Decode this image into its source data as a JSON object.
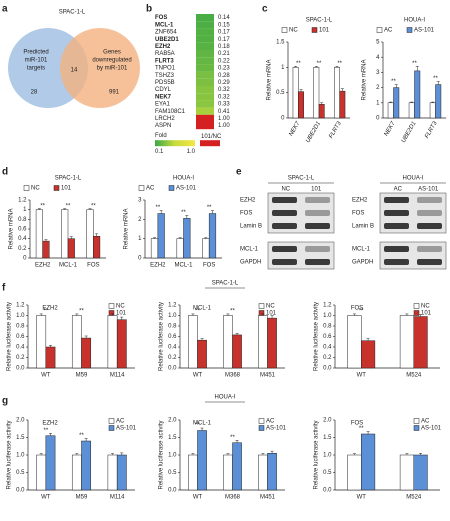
{
  "panel_letters": [
    "a",
    "b",
    "c",
    "d",
    "e",
    "f",
    "g"
  ],
  "venn": {
    "title": "SPAC-1-L",
    "left_label": [
      "Predicted",
      "miR-101",
      "targets"
    ],
    "right_label": [
      "Genes",
      "downregulated",
      "by miR-101"
    ],
    "left_only": 28,
    "overlap": 14,
    "right_only": 991,
    "left_color": "#a9c4e6",
    "right_color": "#f4b27f"
  },
  "heatmap": {
    "genes": [
      "FOS",
      "MCL-1",
      "ZNF654",
      "UBE2D1",
      "EZH2",
      "RAB5A",
      "FLRT3",
      "TNPO1",
      "TSHZ3",
      "PDS5B",
      "CDYL",
      "NEK7",
      "EYA1",
      "FAM108C1",
      "LRCH2",
      "ASPN"
    ],
    "values": [
      0.14,
      0.15,
      0.17,
      0.17,
      0.18,
      0.21,
      0.22,
      0.23,
      0.28,
      0.29,
      0.32,
      0.32,
      0.33,
      0.41,
      1.0,
      1.0
    ],
    "value_labels": [
      "0.14",
      "0.15",
      "0.17",
      "0.17",
      "0.18",
      "0.21",
      "0.22",
      "0.23",
      "0.28",
      "0.29",
      "0.32",
      "0.32",
      "0.33",
      "0.41",
      "1.00",
      "1.00"
    ],
    "emphasis": [
      true,
      true,
      false,
      true,
      true,
      false,
      true,
      false,
      false,
      false,
      false,
      true,
      false,
      false,
      false,
      false
    ],
    "legend_title": "Fold",
    "scale_min": 0.1,
    "scale_max": {
      "value": 1,
      "label": "1.0"
    },
    "ratio_label": "101/NC"
  },
  "blot": {
    "groups": [
      {
        "title": "SPAC-1-L",
        "lanes": [
          "NC",
          "101"
        ]
      },
      {
        "title": "HOUA-I",
        "lanes": [
          "AC",
          "AS-101"
        ]
      }
    ],
    "rows": [
      "EZH2",
      "FOS",
      "Lamin B",
      "MCL-1",
      "GAPDH"
    ]
  },
  "group_titles": {
    "f": "SPAC-1-L",
    "g": "HOUA-I"
  },
  "chart_data": [
    {
      "type": "bar",
      "title": "SPAC-1-L",
      "y_label": "Relative mRNA",
      "categories": [
        "NEK7",
        "UBE2D1",
        "FLRT3"
      ],
      "series": [
        {
          "name": "NC",
          "color": "#ffffff",
          "values": [
            1,
            1,
            1
          ],
          "errors": [
            0.02,
            0.02,
            0.02
          ]
        },
        {
          "name": "101",
          "color": "#c8322d",
          "values": [
            0.52,
            0.27,
            0.53
          ],
          "errors": [
            0.04,
            0.03,
            0.05
          ]
        }
      ],
      "significance": [
        "**",
        "**",
        "**"
      ],
      "ylim": [
        0,
        1.5
      ],
      "yticks": [
        0,
        0.5,
        1,
        1.5
      ],
      "legend": "top"
    },
    {
      "type": "bar",
      "title": "HOUA-I",
      "y_label": "Relative mRNA",
      "categories": [
        "NEK7",
        "UBE2D1",
        "FLRT3"
      ],
      "series": [
        {
          "name": "AC",
          "color": "#ffffff",
          "values": [
            1,
            1,
            1
          ],
          "errors": [
            0.05,
            0.05,
            0.05
          ]
        },
        {
          "name": "AS-101",
          "color": "#5b8fd6",
          "values": [
            2.0,
            3.1,
            2.2
          ],
          "errors": [
            0.2,
            0.3,
            0.2
          ]
        }
      ],
      "significance": [
        "**",
        "**",
        "**"
      ],
      "ylim": [
        0,
        5
      ],
      "yticks": [
        0,
        1,
        2,
        3,
        4,
        5
      ],
      "legend": "top"
    },
    {
      "type": "bar",
      "title": "SPAC-1-L",
      "y_label": "Relative mRNA",
      "categories": [
        "EZH2",
        "MCL-1",
        "FOS"
      ],
      "series": [
        {
          "name": "NC",
          "color": "#ffffff",
          "values": [
            1,
            1,
            1
          ],
          "errors": [
            0.02,
            0.02,
            0.02
          ]
        },
        {
          "name": "101",
          "color": "#c8322d",
          "values": [
            0.35,
            0.4,
            0.45
          ],
          "errors": [
            0.03,
            0.04,
            0.05
          ]
        }
      ],
      "significance": [
        "**",
        "**",
        "**"
      ],
      "ylim": [
        0,
        1.2
      ],
      "yticks": [
        0,
        0.2,
        0.4,
        0.6,
        0.8,
        1,
        1.2
      ],
      "legend": "top"
    },
    {
      "type": "bar",
      "title": "HOUA-I",
      "y_label": "Relative mRNA",
      "categories": [
        "EZH2",
        "MCL-1",
        "FOS"
      ],
      "series": [
        {
          "name": "AC",
          "color": "#ffffff",
          "values": [
            1,
            1,
            1
          ],
          "errors": [
            0.05,
            0.05,
            0.05
          ]
        },
        {
          "name": "AS-101",
          "color": "#5b8fd6",
          "values": [
            2.3,
            2.05,
            2.3
          ],
          "errors": [
            0.15,
            0.15,
            0.15
          ]
        }
      ],
      "significance": [
        "**",
        "**",
        "**"
      ],
      "ylim": [
        0,
        3
      ],
      "yticks": [
        0,
        1,
        2,
        3
      ],
      "legend": "top"
    },
    {
      "type": "bar",
      "title": "EZH2",
      "y_label": "Relative luciferase activity",
      "categories": [
        "WT",
        "M59",
        "M114"
      ],
      "series": [
        {
          "name": "NC",
          "color": "#ffffff",
          "values": [
            1,
            1,
            1
          ],
          "errors": [
            0.03,
            0.03,
            0.03
          ]
        },
        {
          "name": "101",
          "color": "#c8322d",
          "values": [
            0.4,
            0.57,
            0.92
          ],
          "errors": [
            0.03,
            0.04,
            0.05
          ]
        }
      ],
      "significance": [
        "**",
        "**",
        null
      ],
      "ylim": [
        0,
        1.2
      ],
      "yticks": [
        {
          "value": 0,
          "label": "0.0"
        },
        0.2,
        0.4,
        0.6,
        0.8,
        {
          "value": 1,
          "label": "1.0"
        },
        1.2
      ],
      "legend": "top-right"
    },
    {
      "type": "bar",
      "title": "MCL-1",
      "y_label": "Relative luciferase activity",
      "categories": [
        "WT",
        "M368",
        "M451"
      ],
      "series": [
        {
          "name": "NC",
          "color": "#ffffff",
          "values": [
            1,
            1,
            1
          ],
          "errors": [
            0.03,
            0.03,
            0.03
          ]
        },
        {
          "name": "101",
          "color": "#c8322d",
          "values": [
            0.53,
            0.63,
            0.95
          ],
          "errors": [
            0.03,
            0.03,
            0.05
          ]
        }
      ],
      "significance": [
        "**",
        "**",
        null
      ],
      "ylim": [
        0,
        1.2
      ],
      "yticks": [
        {
          "value": 0,
          "label": "0.0"
        },
        0.2,
        0.4,
        0.6,
        0.8,
        {
          "value": 1,
          "label": "1.0"
        },
        1.2
      ],
      "legend": "top-right"
    },
    {
      "type": "bar",
      "title": "FOS",
      "y_label": "Relative luciferase activity",
      "categories": [
        "WT",
        "M524"
      ],
      "series": [
        {
          "name": "NC",
          "color": "#ffffff",
          "values": [
            1,
            1
          ],
          "errors": [
            0.03,
            0.03
          ]
        },
        {
          "name": "101",
          "color": "#c8322d",
          "values": [
            0.52,
            0.98
          ],
          "errors": [
            0.04,
            0.04
          ]
        }
      ],
      "significance": [
        "**",
        null
      ],
      "ylim": [
        0,
        1.2
      ],
      "yticks": [
        {
          "value": 0,
          "label": "0.0"
        },
        0.2,
        0.4,
        0.6,
        0.8,
        {
          "value": 1,
          "label": "1.0"
        },
        1.2
      ],
      "legend": "top-right"
    },
    {
      "type": "bar",
      "title": "EZH2",
      "y_label": "Relative luciferase activity",
      "categories": [
        "WT",
        "M59",
        "M114"
      ],
      "series": [
        {
          "name": "AC",
          "color": "#ffffff",
          "values": [
            1,
            1,
            1
          ],
          "errors": [
            0.04,
            0.04,
            0.04
          ]
        },
        {
          "name": "AS-101",
          "color": "#5b8fd6",
          "values": [
            1.55,
            1.4,
            1.0
          ],
          "errors": [
            0.07,
            0.07,
            0.06
          ]
        }
      ],
      "significance": [
        "**",
        "**",
        null
      ],
      "ylim": [
        0,
        2
      ],
      "yticks": [
        {
          "value": 0,
          "label": "0.0"
        },
        0.5,
        {
          "value": 1,
          "label": "1.0"
        },
        1.5,
        {
          "value": 2,
          "label": "2.0"
        }
      ],
      "legend": "top-right"
    },
    {
      "type": "bar",
      "title": "MCL-1",
      "y_label": "Relative luciferase activity",
      "categories": [
        "WT",
        "M368",
        "M451"
      ],
      "series": [
        {
          "name": "AC",
          "color": "#ffffff",
          "values": [
            1,
            1,
            1
          ],
          "errors": [
            0.04,
            0.04,
            0.04
          ]
        },
        {
          "name": "AS-101",
          "color": "#5b8fd6",
          "values": [
            1.7,
            1.35,
            1.05
          ],
          "errors": [
            0.07,
            0.07,
            0.06
          ]
        }
      ],
      "significance": [
        "**",
        "**",
        null
      ],
      "ylim": [
        0,
        2
      ],
      "yticks": [
        {
          "value": 0,
          "label": "0.0"
        },
        0.5,
        {
          "value": 1,
          "label": "1.0"
        },
        1.5,
        {
          "value": 2,
          "label": "2.0"
        }
      ],
      "legend": "top-right"
    },
    {
      "type": "bar",
      "title": "FOS",
      "y_label": "Relative luciferase activity",
      "categories": [
        "WT",
        "M524"
      ],
      "series": [
        {
          "name": "AC",
          "color": "#ffffff",
          "values": [
            1,
            1
          ],
          "errors": [
            0.04,
            0.04
          ]
        },
        {
          "name": "AS-101",
          "color": "#5b8fd6",
          "values": [
            1.6,
            1.0
          ],
          "errors": [
            0.07,
            0.05
          ]
        }
      ],
      "significance": [
        "**",
        null
      ],
      "ylim": [
        0,
        2
      ],
      "yticks": [
        {
          "value": 0,
          "label": "0.0"
        },
        0.5,
        {
          "value": 1,
          "label": "1.0"
        },
        1.5,
        {
          "value": 2,
          "label": "2.0"
        }
      ],
      "legend": "top-right"
    }
  ]
}
